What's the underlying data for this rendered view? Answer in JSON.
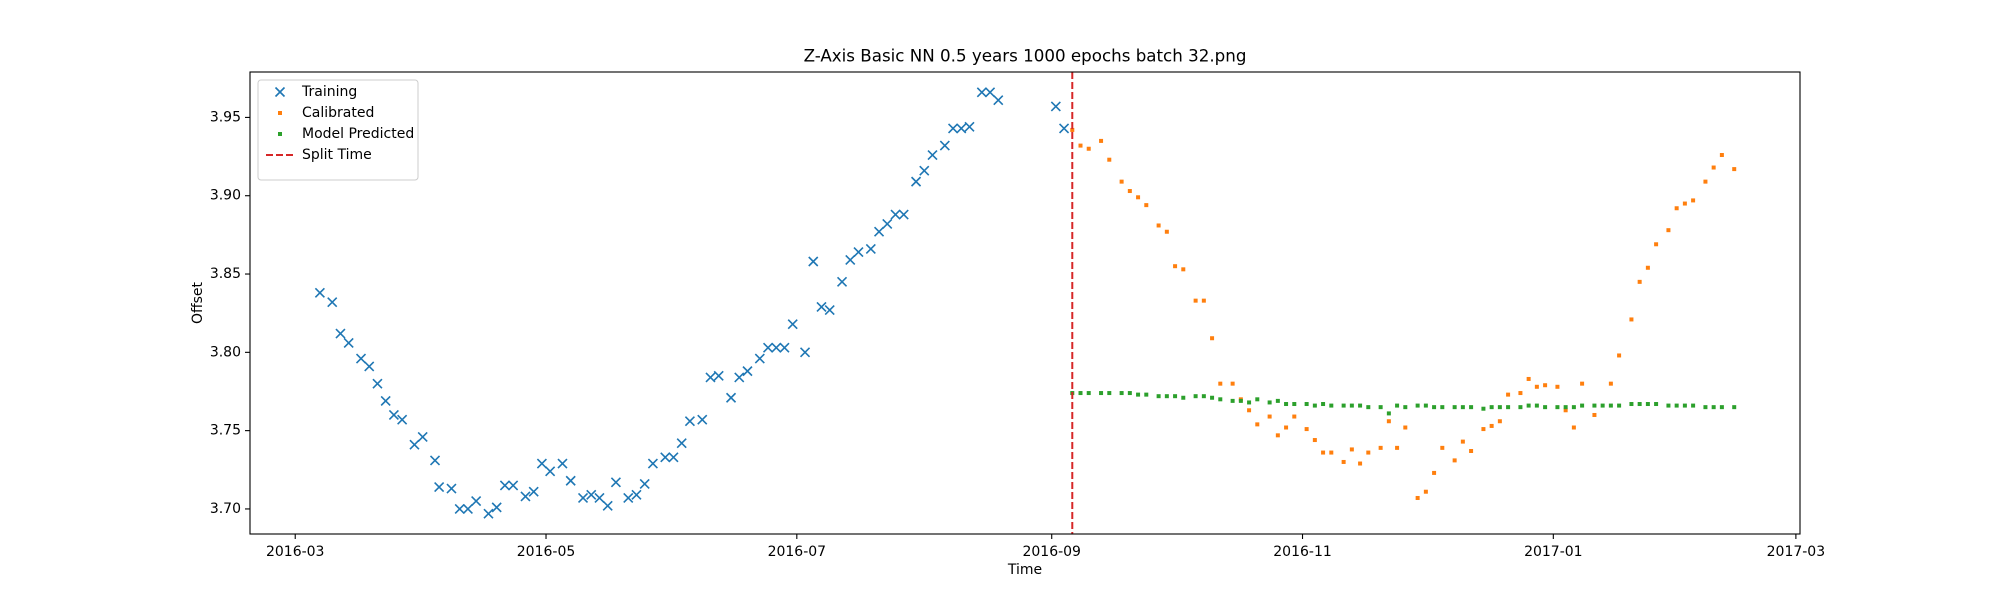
{
  "chart_data": {
    "type": "scatter",
    "title": "Z-Axis Basic NN 0.5 years 1000 epochs batch 32.png",
    "x_label": "Time",
    "y_label": "Offset",
    "legend": "upper left",
    "grid": false,
    "xlim": [
      "2016-02-19",
      "2017-03-02"
    ],
    "xticks": [
      {
        "value": "2016-03-01",
        "label": "2016-03"
      },
      {
        "value": "2016-05-01",
        "label": "2016-05"
      },
      {
        "value": "2016-07-01",
        "label": "2016-07"
      },
      {
        "value": "2016-09-01",
        "label": "2016-09"
      },
      {
        "value": "2016-11-01",
        "label": "2016-11"
      },
      {
        "value": "2017-01-01",
        "label": "2017-01"
      },
      {
        "value": "2017-03-01",
        "label": "2017-03"
      }
    ],
    "ylim": [
      3.684,
      3.979
    ],
    "yticks": [
      {
        "value": 3.7,
        "label": "3.70"
      },
      3.75,
      {
        "value": 3.8,
        "label": "3.80"
      },
      3.85,
      {
        "value": 3.9,
        "label": "3.90"
      },
      3.95
    ],
    "series": [
      {
        "name": "Training",
        "color": "#1f77b4",
        "marker": "x",
        "x": [
          "2016-03-07",
          "2016-03-10",
          "2016-03-12",
          "2016-03-14",
          "2016-03-17",
          "2016-03-19",
          "2016-03-21",
          "2016-03-23",
          "2016-03-25",
          "2016-03-27",
          "2016-03-30",
          "2016-04-01",
          "2016-04-04",
          "2016-04-05",
          "2016-04-08",
          "2016-04-10",
          "2016-04-12",
          "2016-04-14",
          "2016-04-17",
          "2016-04-19",
          "2016-04-21",
          "2016-04-23",
          "2016-04-26",
          "2016-04-28",
          "2016-04-30",
          "2016-05-02",
          "2016-05-05",
          "2016-05-07",
          "2016-05-10",
          "2016-05-12",
          "2016-05-14",
          "2016-05-16",
          "2016-05-18",
          "2016-05-21",
          "2016-05-23",
          "2016-05-25",
          "2016-05-27",
          "2016-05-30",
          "2016-06-01",
          "2016-06-03",
          "2016-06-05",
          "2016-06-08",
          "2016-06-10",
          "2016-06-12",
          "2016-06-15",
          "2016-06-17",
          "2016-06-19",
          "2016-06-22",
          "2016-06-24",
          "2016-06-26",
          "2016-06-28",
          "2016-06-30",
          "2016-07-03",
          "2016-07-05",
          "2016-07-07",
          "2016-07-09",
          "2016-07-12",
          "2016-07-14",
          "2016-07-16",
          "2016-07-19",
          "2016-07-21",
          "2016-07-23",
          "2016-07-25",
          "2016-07-27",
          "2016-07-30",
          "2016-08-01",
          "2016-08-03",
          "2016-08-06",
          "2016-08-08",
          "2016-08-10",
          "2016-08-12",
          "2016-08-15",
          "2016-08-17",
          "2016-08-19",
          "2016-09-02",
          "2016-09-04"
        ],
        "values": [
          3.838,
          3.832,
          3.812,
          3.806,
          3.796,
          3.791,
          3.78,
          3.769,
          3.76,
          3.757,
          3.741,
          3.746,
          3.731,
          3.714,
          3.713,
          3.7,
          3.7,
          3.705,
          3.697,
          3.701,
          3.715,
          3.715,
          3.708,
          3.711,
          3.729,
          3.724,
          3.729,
          3.718,
          3.707,
          3.709,
          3.707,
          3.702,
          3.717,
          3.707,
          3.709,
          3.716,
          3.729,
          3.733,
          3.733,
          3.742,
          3.756,
          3.757,
          3.784,
          3.785,
          3.771,
          3.784,
          3.788,
          3.796,
          3.803,
          3.803,
          3.803,
          3.818,
          3.8,
          3.858,
          3.829,
          3.827,
          3.845,
          3.859,
          3.864,
          3.866,
          3.877,
          3.882,
          3.888,
          3.888,
          3.909,
          3.916,
          3.926,
          3.932,
          3.943,
          3.943,
          3.944,
          3.966,
          3.966,
          3.961,
          3.957,
          3.943
        ]
      },
      {
        "name": "Calibrated",
        "color": "#ff7f0e",
        "marker": "square",
        "x": [
          "2016-09-06",
          "2016-09-08",
          "2016-09-10",
          "2016-09-13",
          "2016-09-15",
          "2016-09-18",
          "2016-09-20",
          "2016-09-22",
          "2016-09-24",
          "2016-09-27",
          "2016-09-29",
          "2016-10-01",
          "2016-10-03",
          "2016-10-06",
          "2016-10-08",
          "2016-10-10",
          "2016-10-12",
          "2016-10-15",
          "2016-10-17",
          "2016-10-19",
          "2016-10-21",
          "2016-10-24",
          "2016-10-26",
          "2016-10-28",
          "2016-10-30",
          "2016-11-02",
          "2016-11-04",
          "2016-11-06",
          "2016-11-08",
          "2016-11-11",
          "2016-11-13",
          "2016-11-15",
          "2016-11-17",
          "2016-11-20",
          "2016-11-22",
          "2016-11-24",
          "2016-11-26",
          "2016-11-29",
          "2016-12-01",
          "2016-12-03",
          "2016-12-05",
          "2016-12-08",
          "2016-12-10",
          "2016-12-12",
          "2016-12-15",
          "2016-12-17",
          "2016-12-19",
          "2016-12-21",
          "2016-12-24",
          "2016-12-26",
          "2016-12-28",
          "2016-12-30",
          "2017-01-02",
          "2017-01-04",
          "2017-01-06",
          "2017-01-08",
          "2017-01-11",
          "2017-01-15",
          "2017-01-17",
          "2017-01-20",
          "2017-01-22",
          "2017-01-24",
          "2017-01-26",
          "2017-01-29",
          "2017-01-31",
          "2017-02-02",
          "2017-02-04",
          "2017-02-07",
          "2017-02-09",
          "2017-02-11",
          "2017-02-14"
        ],
        "values": [
          3.942,
          3.932,
          3.93,
          3.935,
          3.923,
          3.909,
          3.903,
          3.899,
          3.894,
          3.881,
          3.877,
          3.855,
          3.853,
          3.833,
          3.833,
          3.809,
          3.78,
          3.78,
          3.77,
          3.763,
          3.754,
          3.759,
          3.747,
          3.752,
          3.759,
          3.751,
          3.744,
          3.736,
          3.736,
          3.73,
          3.738,
          3.729,
          3.736,
          3.739,
          3.756,
          3.739,
          3.752,
          3.707,
          3.711,
          3.723,
          3.739,
          3.731,
          3.743,
          3.737,
          3.751,
          3.753,
          3.756,
          3.773,
          3.774,
          3.783,
          3.778,
          3.779,
          3.778,
          3.763,
          3.752,
          3.78,
          3.76,
          3.78,
          3.798,
          3.821,
          3.845,
          3.854,
          3.869,
          3.878,
          3.892,
          3.895,
          3.897,
          3.909,
          3.918,
          3.926,
          3.917
        ]
      },
      {
        "name": "Model Predicted",
        "color": "#2ca02c",
        "marker": "square",
        "x": [
          "2016-09-06",
          "2016-09-08",
          "2016-09-10",
          "2016-09-13",
          "2016-09-15",
          "2016-09-18",
          "2016-09-20",
          "2016-09-22",
          "2016-09-24",
          "2016-09-27",
          "2016-09-29",
          "2016-10-01",
          "2016-10-03",
          "2016-10-06",
          "2016-10-08",
          "2016-10-10",
          "2016-10-12",
          "2016-10-15",
          "2016-10-17",
          "2016-10-19",
          "2016-10-21",
          "2016-10-24",
          "2016-10-26",
          "2016-10-28",
          "2016-10-30",
          "2016-11-02",
          "2016-11-04",
          "2016-11-06",
          "2016-11-08",
          "2016-11-11",
          "2016-11-13",
          "2016-11-15",
          "2016-11-17",
          "2016-11-20",
          "2016-11-22",
          "2016-11-24",
          "2016-11-26",
          "2016-11-29",
          "2016-12-01",
          "2016-12-03",
          "2016-12-05",
          "2016-12-08",
          "2016-12-10",
          "2016-12-12",
          "2016-12-15",
          "2016-12-17",
          "2016-12-19",
          "2016-12-21",
          "2016-12-24",
          "2016-12-26",
          "2016-12-28",
          "2016-12-30",
          "2017-01-02",
          "2017-01-04",
          "2017-01-06",
          "2017-01-08",
          "2017-01-11",
          "2017-01-13",
          "2017-01-15",
          "2017-01-17",
          "2017-01-20",
          "2017-01-22",
          "2017-01-24",
          "2017-01-26",
          "2017-01-29",
          "2017-01-31",
          "2017-02-02",
          "2017-02-04",
          "2017-02-07",
          "2017-02-09",
          "2017-02-11",
          "2017-02-14"
        ],
        "values": [
          3.774,
          3.774,
          3.774,
          3.774,
          3.774,
          3.774,
          3.774,
          3.773,
          3.773,
          3.772,
          3.772,
          3.772,
          3.771,
          3.772,
          3.772,
          3.771,
          3.77,
          3.769,
          3.769,
          3.768,
          3.77,
          3.768,
          3.769,
          3.767,
          3.767,
          3.767,
          3.766,
          3.767,
          3.766,
          3.766,
          3.766,
          3.766,
          3.765,
          3.765,
          3.761,
          3.766,
          3.765,
          3.766,
          3.766,
          3.765,
          3.765,
          3.765,
          3.765,
          3.765,
          3.764,
          3.765,
          3.765,
          3.765,
          3.765,
          3.766,
          3.766,
          3.765,
          3.765,
          3.765,
          3.765,
          3.766,
          3.766,
          3.766,
          3.766,
          3.766,
          3.767,
          3.767,
          3.767,
          3.767,
          3.766,
          3.766,
          3.766,
          3.766,
          3.765,
          3.765,
          3.765,
          3.765
        ]
      },
      {
        "name": "Split Time",
        "color": "#d62728",
        "marker": "vline",
        "x": "2016-09-06"
      }
    ]
  }
}
